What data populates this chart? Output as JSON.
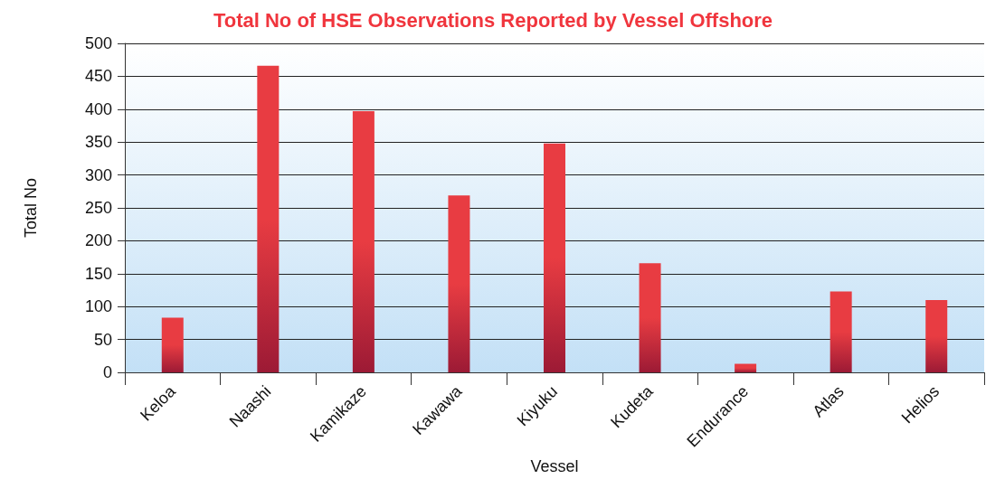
{
  "chart_data": {
    "type": "bar",
    "title": "Total No of HSE Observations Reported by Vessel Offshore",
    "xlabel": "Vessel",
    "ylabel": "Total No",
    "categories": [
      "Keloa",
      "Naashi",
      "Kamikaze",
      "Kawawa",
      "Kiyuku",
      "Kudeta",
      "Endurance",
      "Atlas",
      "Helios"
    ],
    "values": [
      83,
      466,
      397,
      269,
      348,
      166,
      13,
      123,
      110
    ],
    "color": "#e83c42",
    "ylim": [
      0,
      500
    ],
    "yticks": [
      0,
      50,
      100,
      150,
      200,
      250,
      300,
      350,
      400,
      450,
      500
    ],
    "grid": "y"
  }
}
